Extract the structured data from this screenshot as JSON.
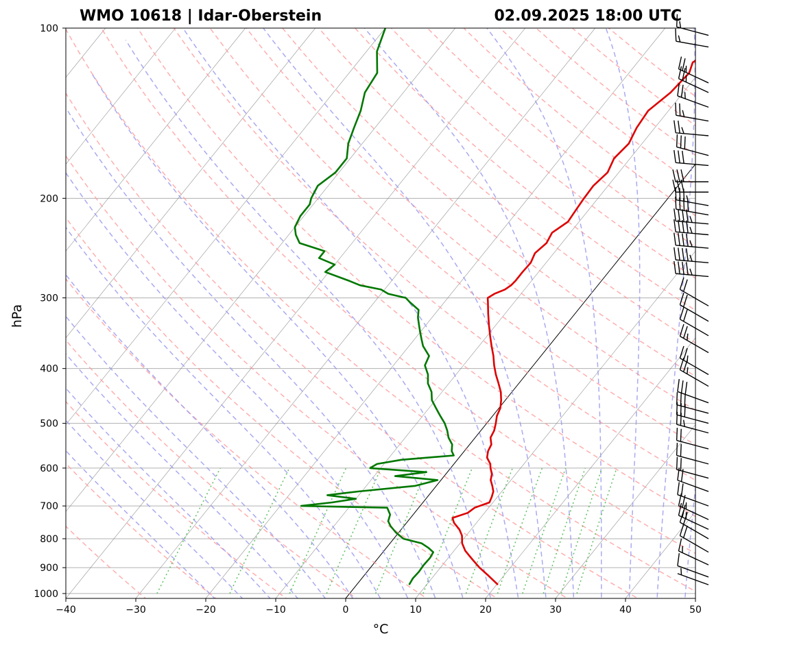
{
  "chart_data": {
    "type": "line",
    "title_left": "WMO 10618 | Idar-Oberstein",
    "title_right": "02.09.2025 18:00 UTC",
    "xlabel": "°C",
    "ylabel": "hPa",
    "xlim": [
      -40,
      50
    ],
    "ylim": [
      1020,
      100
    ],
    "y_scale": "log",
    "x_ticks": [
      -40,
      -30,
      -20,
      -10,
      0,
      10,
      20,
      30,
      40,
      50
    ],
    "x_tick_labels": [
      "−40",
      "−30",
      "−20",
      "−10",
      "0",
      "10",
      "20",
      "30",
      "40",
      "50"
    ],
    "y_ticks": [
      100,
      200,
      300,
      400,
      500,
      600,
      700,
      800,
      900,
      1000
    ],
    "y_tick_labels": [
      "100",
      "200",
      "300",
      "400",
      "500",
      "600",
      "700",
      "800",
      "900",
      "1000"
    ],
    "skew": true,
    "grid": true,
    "colors": {
      "temperature": "#dd0000",
      "dewpoint": "#007700",
      "dry_adiabats": "#ff9a9a",
      "moist_adiabats": "#9a9aee",
      "mixing_ratio": "#55bb55",
      "isotherms": "#777777",
      "zero_isotherm": "#000000"
    },
    "series": [
      {
        "key": "temperature",
        "pressure": [
          965,
          930,
          900,
          870,
          840,
          815,
          790,
          770,
          750,
          735,
          720,
          705,
          690,
          675,
          660,
          645,
          630,
          615,
          600,
          590,
          575,
          560,
          545,
          530,
          515,
          500,
          485,
          470,
          455,
          440,
          425,
          410,
          395,
          380,
          365,
          350,
          335,
          320,
          305,
          300,
          295,
          290,
          285,
          280,
          270,
          260,
          250,
          240,
          230,
          220,
          210,
          200,
          190,
          180,
          170,
          160,
          150,
          140,
          130,
          120,
          115,
          110,
          105,
          100
        ],
        "temp": [
          20.2,
          17.8,
          15.6,
          13.6,
          11.6,
          10.3,
          9.4,
          8.3,
          6.8,
          6.0,
          7.6,
          8.0,
          9.5,
          9.2,
          8.8,
          8.0,
          7.1,
          6.6,
          5.7,
          5.2,
          4.0,
          3.4,
          3.1,
          2.2,
          1.9,
          1.3,
          0.6,
          0.2,
          -0.6,
          -1.6,
          -2.9,
          -4.3,
          -5.6,
          -6.8,
          -8.2,
          -9.6,
          -11.0,
          -12.4,
          -13.8,
          -14.3,
          -13.8,
          -12.8,
          -12.4,
          -12.3,
          -12.3,
          -12.2,
          -12.7,
          -12.2,
          -12.6,
          -11.6,
          -11.8,
          -12.0,
          -12.1,
          -11.6,
          -12.3,
          -11.9,
          -12.6,
          -12.9,
          -11.8,
          -11.4,
          -12.1,
          -11.0,
          -11.6,
          -11.4
        ]
      },
      {
        "key": "dewpoint",
        "pressure": [
          965,
          940,
          915,
          890,
          865,
          845,
          830,
          815,
          800,
          780,
          760,
          745,
          725,
          705,
          700,
          690,
          680,
          670,
          660,
          645,
          630,
          620,
          610,
          600,
          590,
          580,
          570,
          560,
          545,
          530,
          515,
          500,
          485,
          470,
          455,
          440,
          425,
          410,
          395,
          380,
          365,
          355,
          345,
          335,
          325,
          315,
          305,
          300,
          295,
          290,
          285,
          280,
          270,
          262,
          255,
          248,
          240,
          232,
          225,
          215,
          205,
          200,
          190,
          180,
          170,
          160,
          150,
          140,
          130,
          120,
          110,
          100
        ],
        "temp": [
          7.5,
          7.3,
          7.4,
          7.3,
          7.4,
          7.2,
          6.0,
          4.5,
          1.4,
          -0.4,
          -1.9,
          -2.8,
          -3.3,
          -4.5,
          -17.0,
          -13.0,
          -10.0,
          -14.5,
          -10.5,
          -3.0,
          -0.5,
          -7.0,
          -3.0,
          -11.5,
          -11.0,
          -8.0,
          -1.0,
          -1.8,
          -2.5,
          -3.8,
          -4.8,
          -6.0,
          -7.5,
          -9.0,
          -10.5,
          -11.5,
          -13.0,
          -14.0,
          -15.5,
          -16.0,
          -18.0,
          -19.0,
          -20.0,
          -21.0,
          -22.0,
          -22.8,
          -25.0,
          -26.0,
          -29.0,
          -30.5,
          -34.0,
          -36.0,
          -40.5,
          -40.0,
          -43.0,
          -43.0,
          -47.5,
          -49.0,
          -50.0,
          -50.5,
          -50.5,
          -51.0,
          -51.5,
          -50.5,
          -50.5,
          -52.0,
          -53.0,
          -54.0,
          -55.5,
          -56.0,
          -58.5,
          -60.0
        ]
      }
    ],
    "wind_barbs": [
      {
        "pressure": 965,
        "speed_kt": 5,
        "dir": 290
      },
      {
        "pressure": 935,
        "speed_kt": 10,
        "dir": 290
      },
      {
        "pressure": 890,
        "speed_kt": 15,
        "dir": 295
      },
      {
        "pressure": 845,
        "speed_kt": 20,
        "dir": 300
      },
      {
        "pressure": 800,
        "speed_kt": 20,
        "dir": 300
      },
      {
        "pressure": 770,
        "speed_kt": 25,
        "dir": 295
      },
      {
        "pressure": 740,
        "speed_kt": 25,
        "dir": 295
      },
      {
        "pressure": 700,
        "speed_kt": 20,
        "dir": 290
      },
      {
        "pressure": 660,
        "speed_kt": 20,
        "dir": 290
      },
      {
        "pressure": 625,
        "speed_kt": 20,
        "dir": 285
      },
      {
        "pressure": 590,
        "speed_kt": 20,
        "dir": 285
      },
      {
        "pressure": 555,
        "speed_kt": 20,
        "dir": 285
      },
      {
        "pressure": 520,
        "speed_kt": 25,
        "dir": 285
      },
      {
        "pressure": 500,
        "speed_kt": 30,
        "dir": 285
      },
      {
        "pressure": 480,
        "speed_kt": 30,
        "dir": 285
      },
      {
        "pressure": 460,
        "speed_kt": 30,
        "dir": 290
      },
      {
        "pressure": 430,
        "speed_kt": 25,
        "dir": 300
      },
      {
        "pressure": 410,
        "speed_kt": 25,
        "dir": 300
      },
      {
        "pressure": 375,
        "speed_kt": 25,
        "dir": 300
      },
      {
        "pressure": 350,
        "speed_kt": 20,
        "dir": 300
      },
      {
        "pressure": 330,
        "speed_kt": 20,
        "dir": 300
      },
      {
        "pressure": 310,
        "speed_kt": 20,
        "dir": 300
      },
      {
        "pressure": 275,
        "speed_kt": 45,
        "dir": 275
      },
      {
        "pressure": 260,
        "speed_kt": 45,
        "dir": 275
      },
      {
        "pressure": 245,
        "speed_kt": 45,
        "dir": 275
      },
      {
        "pressure": 232,
        "speed_kt": 45,
        "dir": 275
      },
      {
        "pressure": 222,
        "speed_kt": 45,
        "dir": 275
      },
      {
        "pressure": 214,
        "speed_kt": 40,
        "dir": 280
      },
      {
        "pressure": 206,
        "speed_kt": 35,
        "dir": 280
      },
      {
        "pressure": 195,
        "speed_kt": 30,
        "dir": 270
      },
      {
        "pressure": 187,
        "speed_kt": 30,
        "dir": 270
      },
      {
        "pressure": 175,
        "speed_kt": 30,
        "dir": 275
      },
      {
        "pressure": 168,
        "speed_kt": 30,
        "dir": 285
      },
      {
        "pressure": 155,
        "speed_kt": 25,
        "dir": 275
      },
      {
        "pressure": 146,
        "speed_kt": 25,
        "dir": 280
      },
      {
        "pressure": 138,
        "speed_kt": 25,
        "dir": 290
      },
      {
        "pressure": 130,
        "speed_kt": 25,
        "dir": 295
      },
      {
        "pressure": 125,
        "speed_kt": 25,
        "dir": 295
      },
      {
        "pressure": 108,
        "speed_kt": 15,
        "dir": 280
      },
      {
        "pressure": 103,
        "speed_kt": 15,
        "dir": 285
      }
    ]
  }
}
